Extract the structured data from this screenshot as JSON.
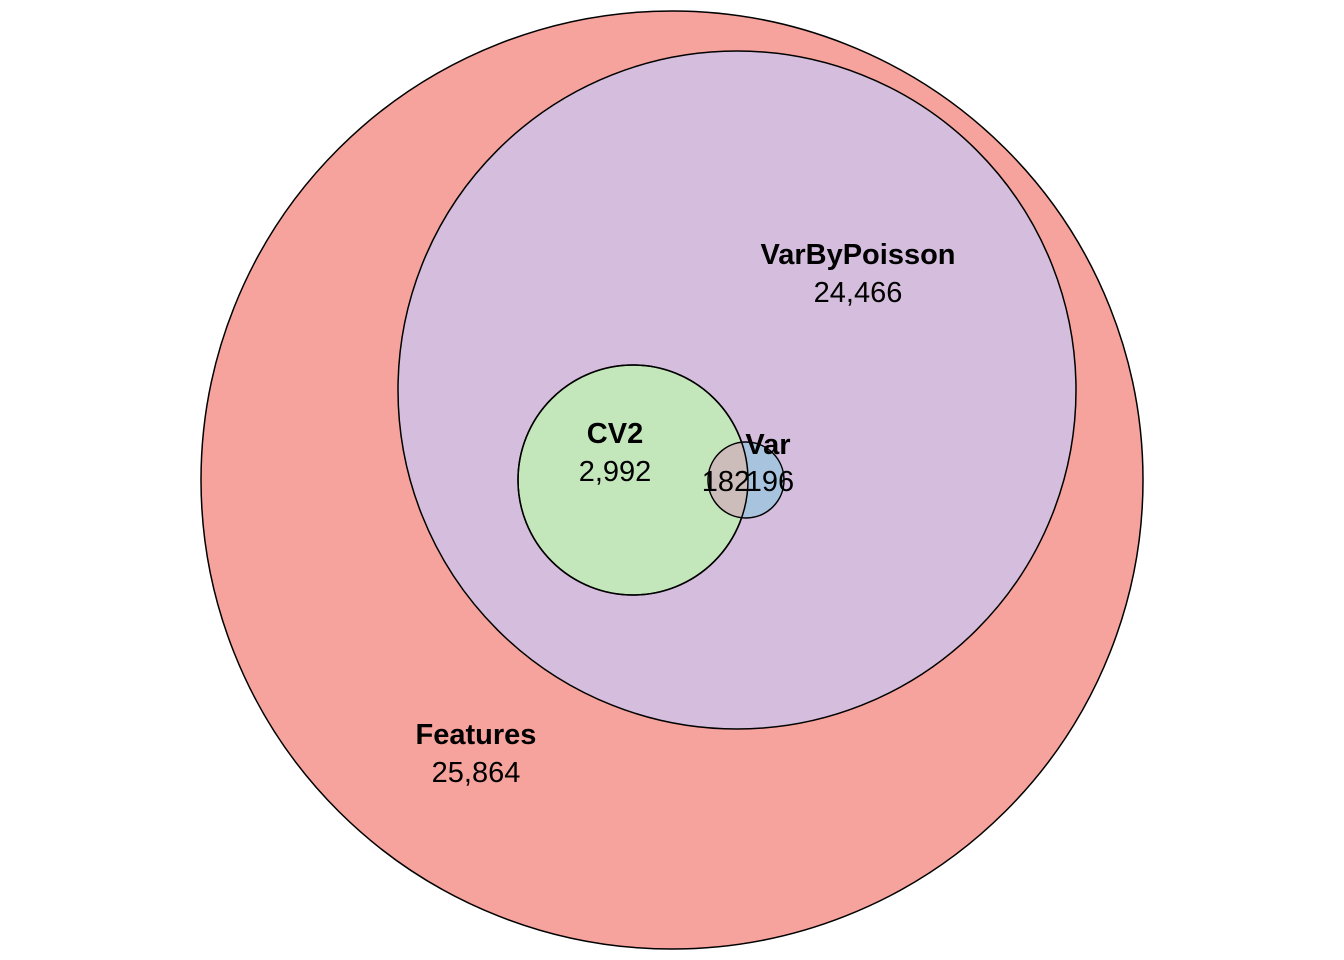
{
  "diagram": {
    "type": "euler-venn",
    "sets": [
      {
        "id": "features",
        "name": "Features",
        "count": "25,864",
        "color": "#f7a39d"
      },
      {
        "id": "varbypoisson",
        "name": "VarByPoisson",
        "count": "24,466",
        "color": "#d5bedd"
      },
      {
        "id": "cv2",
        "name": "CV2",
        "count": "2,992",
        "color": "#c3e6bb"
      },
      {
        "id": "var",
        "name": "Var",
        "count": "196",
        "color": "#a7c3dd"
      }
    ],
    "intersections": [
      {
        "sets": [
          "cv2",
          "var"
        ],
        "count": "182",
        "color": "#ccbcba"
      }
    ],
    "outline_color": "#000000"
  }
}
